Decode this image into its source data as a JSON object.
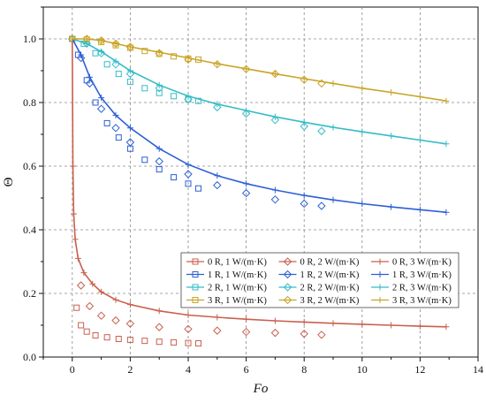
{
  "chart_data": {
    "type": "line",
    "title": "",
    "xlabel": "Fo",
    "ylabel": "Θ",
    "xlim": [
      -1,
      14
    ],
    "ylim": [
      0,
      1.1
    ],
    "xticks": [
      0,
      2,
      4,
      6,
      8,
      10,
      12,
      14
    ],
    "yticks": [
      0.0,
      0.2,
      0.4,
      0.6,
      0.8,
      1.0
    ],
    "grid": true,
    "legend_position": "lower-right",
    "series": [
      {
        "name": "0 R, 1 W/(m·K)",
        "color": "#c8604e",
        "marker": "square",
        "x": [
          0,
          0.15,
          0.3,
          0.5,
          0.8,
          1.2,
          1.6,
          2.0,
          2.5,
          3.0,
          3.5,
          4.0,
          4.35
        ],
        "y": [
          1.0,
          0.155,
          0.1,
          0.08,
          0.068,
          0.062,
          0.057,
          0.054,
          0.051,
          0.048,
          0.046,
          0.044,
          0.043
        ]
      },
      {
        "name": "1 R, 1 W/(m·K)",
        "color": "#2c5fd6",
        "marker": "square",
        "x": [
          0,
          0.2,
          0.5,
          0.8,
          1.2,
          1.6,
          2.0,
          2.5,
          3.0,
          3.5,
          4.0,
          4.35
        ],
        "y": [
          1.0,
          0.95,
          0.87,
          0.8,
          0.735,
          0.69,
          0.655,
          0.62,
          0.59,
          0.565,
          0.545,
          0.53
        ]
      },
      {
        "name": "2 R, 1 W/(m·K)",
        "color": "#35bcc6",
        "marker": "square",
        "x": [
          0,
          0.4,
          0.8,
          1.2,
          1.6,
          2.0,
          2.5,
          3.0,
          3.5,
          4.0,
          4.35
        ],
        "y": [
          1.0,
          0.985,
          0.955,
          0.92,
          0.89,
          0.865,
          0.845,
          0.83,
          0.82,
          0.81,
          0.805
        ]
      },
      {
        "name": "3 R, 1 W/(m·K)",
        "color": "#c9a427",
        "marker": "square",
        "x": [
          0,
          0.5,
          1.0,
          1.5,
          2.0,
          2.5,
          3.0,
          3.5,
          4.0,
          4.35
        ],
        "y": [
          1.0,
          0.998,
          0.99,
          0.98,
          0.972,
          0.962,
          0.953,
          0.945,
          0.938,
          0.935
        ]
      },
      {
        "name": "0 R, 2 W/(m·K)",
        "color": "#c8604e",
        "marker": "diamond",
        "x": [
          0,
          0.3,
          0.6,
          1.0,
          1.5,
          2.0,
          3.0,
          4.0,
          5.0,
          6.0,
          7.0,
          8.0,
          8.6
        ],
        "y": [
          1.0,
          0.225,
          0.16,
          0.13,
          0.115,
          0.105,
          0.094,
          0.088,
          0.083,
          0.079,
          0.076,
          0.073,
          0.07
        ]
      },
      {
        "name": "1 R, 2 W/(m·K)",
        "color": "#2c5fd6",
        "marker": "diamond",
        "x": [
          0,
          0.3,
          0.6,
          1.0,
          1.5,
          2.0,
          3.0,
          4.0,
          5.0,
          6.0,
          7.0,
          8.0,
          8.6
        ],
        "y": [
          1.0,
          0.94,
          0.86,
          0.78,
          0.72,
          0.675,
          0.615,
          0.575,
          0.54,
          0.515,
          0.495,
          0.482,
          0.475
        ]
      },
      {
        "name": "2 R, 2 W/(m·K)",
        "color": "#35bcc6",
        "marker": "diamond",
        "x": [
          0,
          0.5,
          1.0,
          1.5,
          2.0,
          3.0,
          4.0,
          5.0,
          6.0,
          7.0,
          8.0,
          8.6
        ],
        "y": [
          1.0,
          0.985,
          0.955,
          0.92,
          0.89,
          0.845,
          0.81,
          0.785,
          0.765,
          0.745,
          0.725,
          0.71
        ]
      },
      {
        "name": "3 R, 2 W/(m·K)",
        "color": "#c9a427",
        "marker": "diamond",
        "x": [
          0,
          0.5,
          1.0,
          1.5,
          2.0,
          3.0,
          4.0,
          5.0,
          6.0,
          7.0,
          8.0,
          8.6
        ],
        "y": [
          1.0,
          1.0,
          0.995,
          0.985,
          0.975,
          0.955,
          0.935,
          0.92,
          0.905,
          0.89,
          0.872,
          0.86
        ]
      },
      {
        "name": "0 R, 3 W/(m·K)",
        "color": "#c8604e",
        "marker": "plus",
        "x": [
          0,
          0.02,
          0.05,
          0.1,
          0.2,
          0.4,
          0.7,
          1.0,
          1.5,
          2.0,
          3.0,
          4.0,
          5.0,
          6.0,
          7.0,
          8.0,
          9.0,
          10.0,
          11.0,
          12.0,
          12.9
        ],
        "y": [
          1.0,
          0.6,
          0.45,
          0.37,
          0.31,
          0.265,
          0.23,
          0.205,
          0.18,
          0.165,
          0.145,
          0.132,
          0.125,
          0.119,
          0.114,
          0.11,
          0.106,
          0.103,
          0.1,
          0.097,
          0.095
        ]
      },
      {
        "name": "1 R, 3 W/(m·K)",
        "color": "#2c5fd6",
        "marker": "plus",
        "x": [
          0,
          0.3,
          0.6,
          1.0,
          1.5,
          2.0,
          3.0,
          4.0,
          5.0,
          6.0,
          7.0,
          8.0,
          9.0,
          10.0,
          11.0,
          12.0,
          12.9
        ],
        "y": [
          1.0,
          0.95,
          0.88,
          0.815,
          0.76,
          0.72,
          0.655,
          0.605,
          0.57,
          0.545,
          0.525,
          0.508,
          0.494,
          0.482,
          0.472,
          0.463,
          0.455
        ]
      },
      {
        "name": "2 R, 3 W/(m·K)",
        "color": "#35bcc6",
        "marker": "plus",
        "x": [
          0,
          0.5,
          1.0,
          1.5,
          2.0,
          3.0,
          4.0,
          5.0,
          6.0,
          7.0,
          8.0,
          9.0,
          10.0,
          11.0,
          12.0,
          12.9
        ],
        "y": [
          1.0,
          0.985,
          0.96,
          0.93,
          0.9,
          0.855,
          0.82,
          0.795,
          0.775,
          0.755,
          0.738,
          0.722,
          0.708,
          0.695,
          0.682,
          0.67
        ]
      },
      {
        "name": "3 R, 3 W/(m·K)",
        "color": "#c9a427",
        "marker": "plus",
        "x": [
          0,
          0.5,
          1.0,
          1.5,
          2.0,
          3.0,
          4.0,
          5.0,
          6.0,
          7.0,
          8.0,
          9.0,
          10.0,
          11.0,
          12.0,
          12.9
        ],
        "y": [
          1.0,
          1.0,
          0.995,
          0.985,
          0.975,
          0.958,
          0.94,
          0.922,
          0.906,
          0.89,
          0.875,
          0.86,
          0.845,
          0.832,
          0.818,
          0.805
        ]
      }
    ]
  }
}
